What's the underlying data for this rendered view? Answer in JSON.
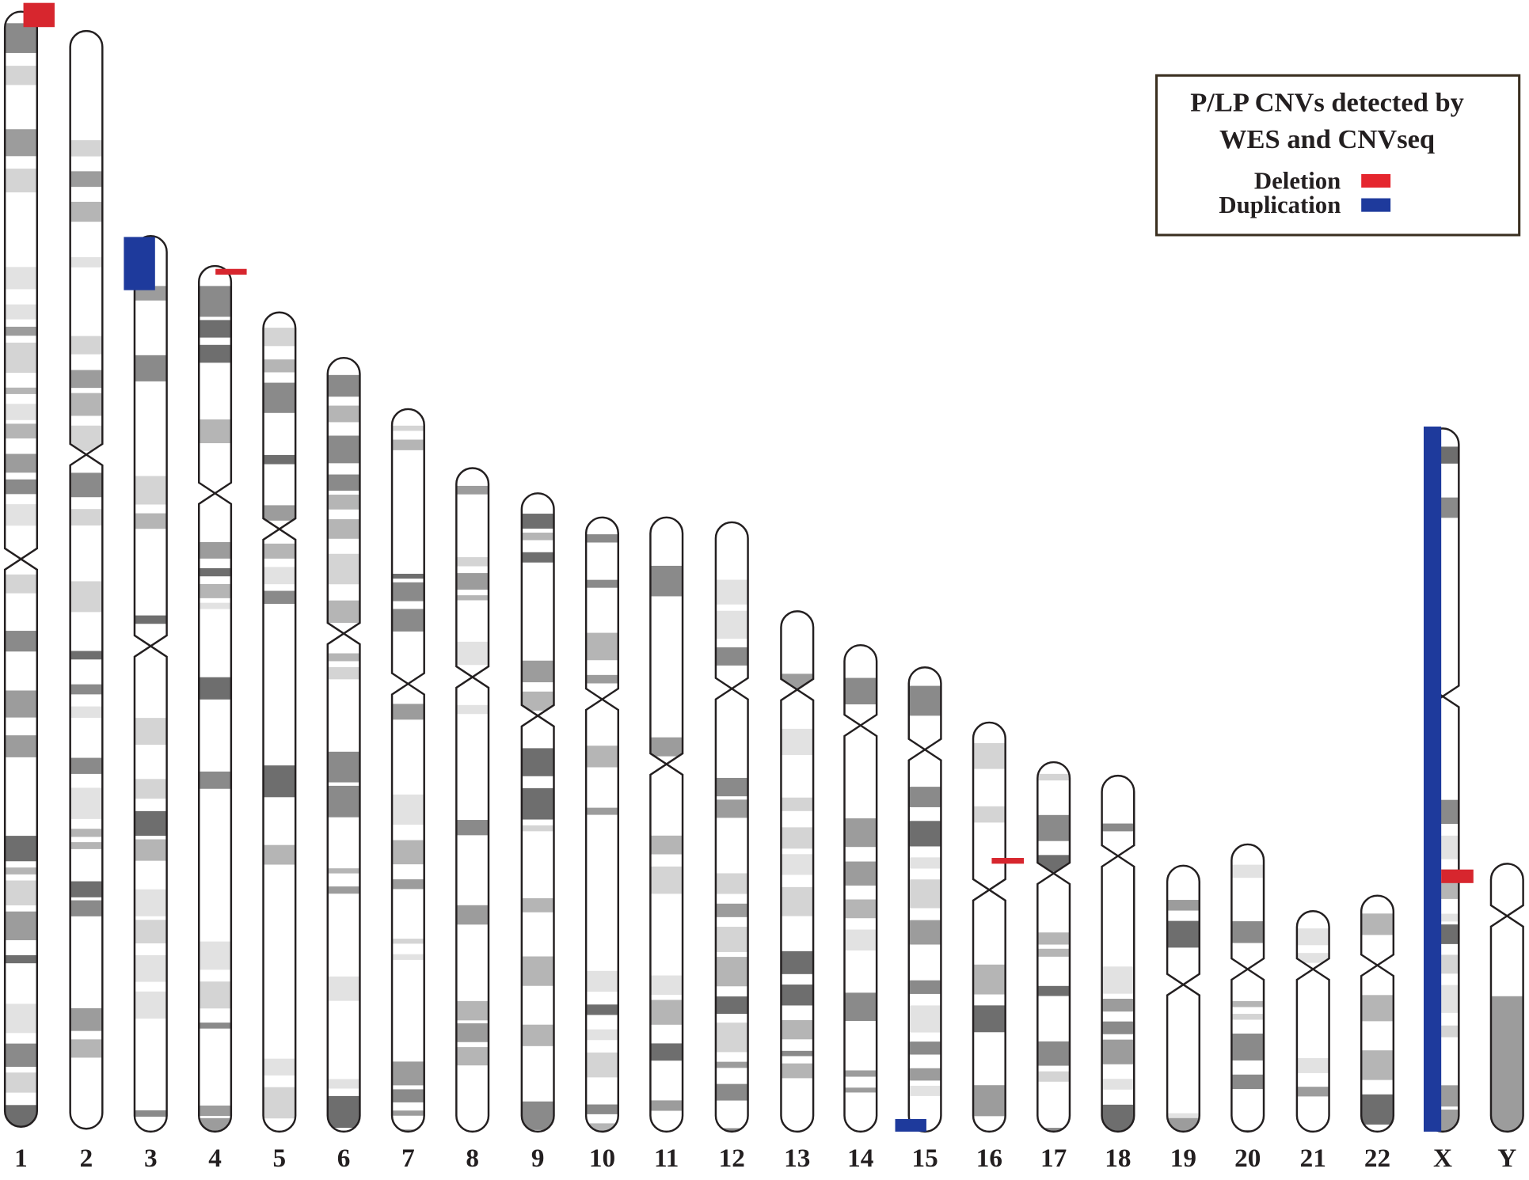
{
  "legend": {
    "title": [
      "P/LP CNVs detected by",
      "WES and CNVseq"
    ],
    "items": [
      "Deletion",
      "Duplication"
    ]
  },
  "chromosomes": [
    "1",
    "2",
    "3",
    "4",
    "5",
    "6",
    "7",
    "8",
    "9",
    "10",
    "11",
    "12",
    "13",
    "14",
    "15",
    "16",
    "17",
    "18",
    "19",
    "20",
    "21",
    "22",
    "X",
    "Y"
  ]
}
